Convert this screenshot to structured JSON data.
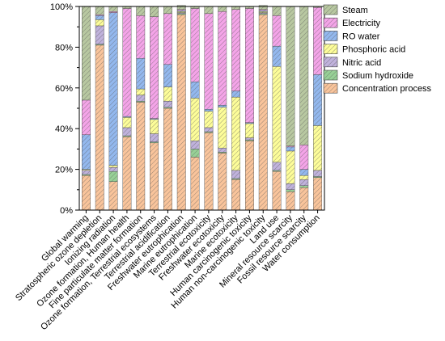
{
  "chart_data": {
    "type": "bar",
    "stacked": true,
    "normalized": true,
    "grid": false,
    "legend_position": "top-right-inside",
    "ylim": [
      0,
      100
    ],
    "yticks": [
      "0%",
      "20%",
      "40%",
      "60%",
      "80%",
      "100%"
    ],
    "categories": [
      "Global warming",
      "Stratospheric ozone depletion",
      "Ionizing radiation",
      "Ozone formation, Human health",
      "Fine particulate matter formation",
      "Ozone formation, Terrestrial ecosystems",
      "Terrestrial acidification",
      "Freshwater eutrophication",
      "Marine eutrophication",
      "Terrestrial ecotoxicity",
      "Freshwater ecotoxicity",
      "Marine ecotoxicity",
      "Human carcinogenic toxicity",
      "Human non-carcinogenic toxicity",
      "Land use",
      "Mineral resource scarcity",
      "Fossil resource scarcity",
      "Water consumption"
    ],
    "series": [
      {
        "name": "Concentration process",
        "color": "#f9c49b",
        "values": [
          17,
          81,
          14,
          36,
          53,
          33,
          50,
          96,
          26,
          38,
          28,
          15,
          34,
          96,
          19,
          9,
          11,
          16
        ]
      },
      {
        "name": "Sodium hydroxide",
        "color": "#97d096",
        "values": [
          0.5,
          0.5,
          5,
          0.5,
          0.5,
          0.5,
          0.5,
          0.5,
          4,
          0.5,
          0.5,
          0.5,
          0.5,
          0.5,
          0.5,
          1,
          1,
          0.5
        ]
      },
      {
        "name": "Nitric acid",
        "color": "#c0b2dc",
        "values": [
          2,
          9,
          2,
          4,
          3,
          4,
          3,
          0.5,
          4,
          2,
          2,
          4,
          1,
          0.5,
          4,
          3,
          3,
          3
        ]
      },
      {
        "name": "Phosphoric acid",
        "color": "#fdfd99",
        "values": [
          0.5,
          3,
          1,
          5,
          3,
          7,
          7,
          0.5,
          21,
          8,
          20,
          36,
          7,
          0.5,
          47,
          16,
          2,
          22
        ]
      },
      {
        "name": "RO water",
        "color": "#93b8ee",
        "values": [
          17,
          2,
          75,
          0.5,
          15,
          0.5,
          11,
          0.5,
          8,
          1,
          1,
          3,
          0.5,
          0.5,
          10,
          2,
          3,
          25
        ]
      },
      {
        "name": "Electricity",
        "color": "#f4a4e8",
        "values": [
          17,
          0.5,
          0.5,
          53,
          21,
          50,
          25,
          0.5,
          36,
          47,
          46,
          40,
          56,
          0.5,
          15,
          0.5,
          12,
          33
        ]
      },
      {
        "name": "Steam",
        "color": "#b8c8a1",
        "values": [
          46,
          4,
          2.5,
          1,
          4.5,
          5,
          3.5,
          2,
          1,
          3.5,
          2.5,
          1.5,
          1,
          2,
          4.5,
          68.5,
          68,
          0.5
        ]
      }
    ]
  }
}
